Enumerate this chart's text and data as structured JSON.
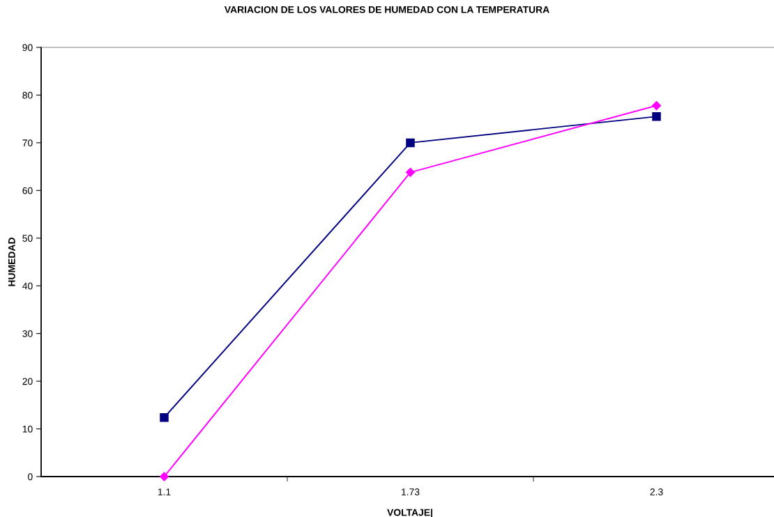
{
  "chart_data": {
    "type": "line",
    "title": "VARIACION DE LOS VALORES DE HUMEDAD CON LA TEMPERATURA",
    "xlabel": "VOLTAJE|",
    "ylabel": "HUMEDAD",
    "categories": [
      "1.1",
      "1.73",
      "2.3"
    ],
    "series": [
      {
        "color": "#000080",
        "marker": "square",
        "values": [
          12.4,
          70.0,
          75.5
        ]
      },
      {
        "color": "#ff00ff",
        "marker": "diamond",
        "values": [
          0,
          63.8,
          77.8
        ]
      }
    ],
    "ylim": [
      0,
      90
    ],
    "yticks": [
      0,
      10,
      20,
      30,
      40,
      50,
      60,
      70,
      80,
      90
    ],
    "grid": false,
    "line_style": "solid"
  }
}
